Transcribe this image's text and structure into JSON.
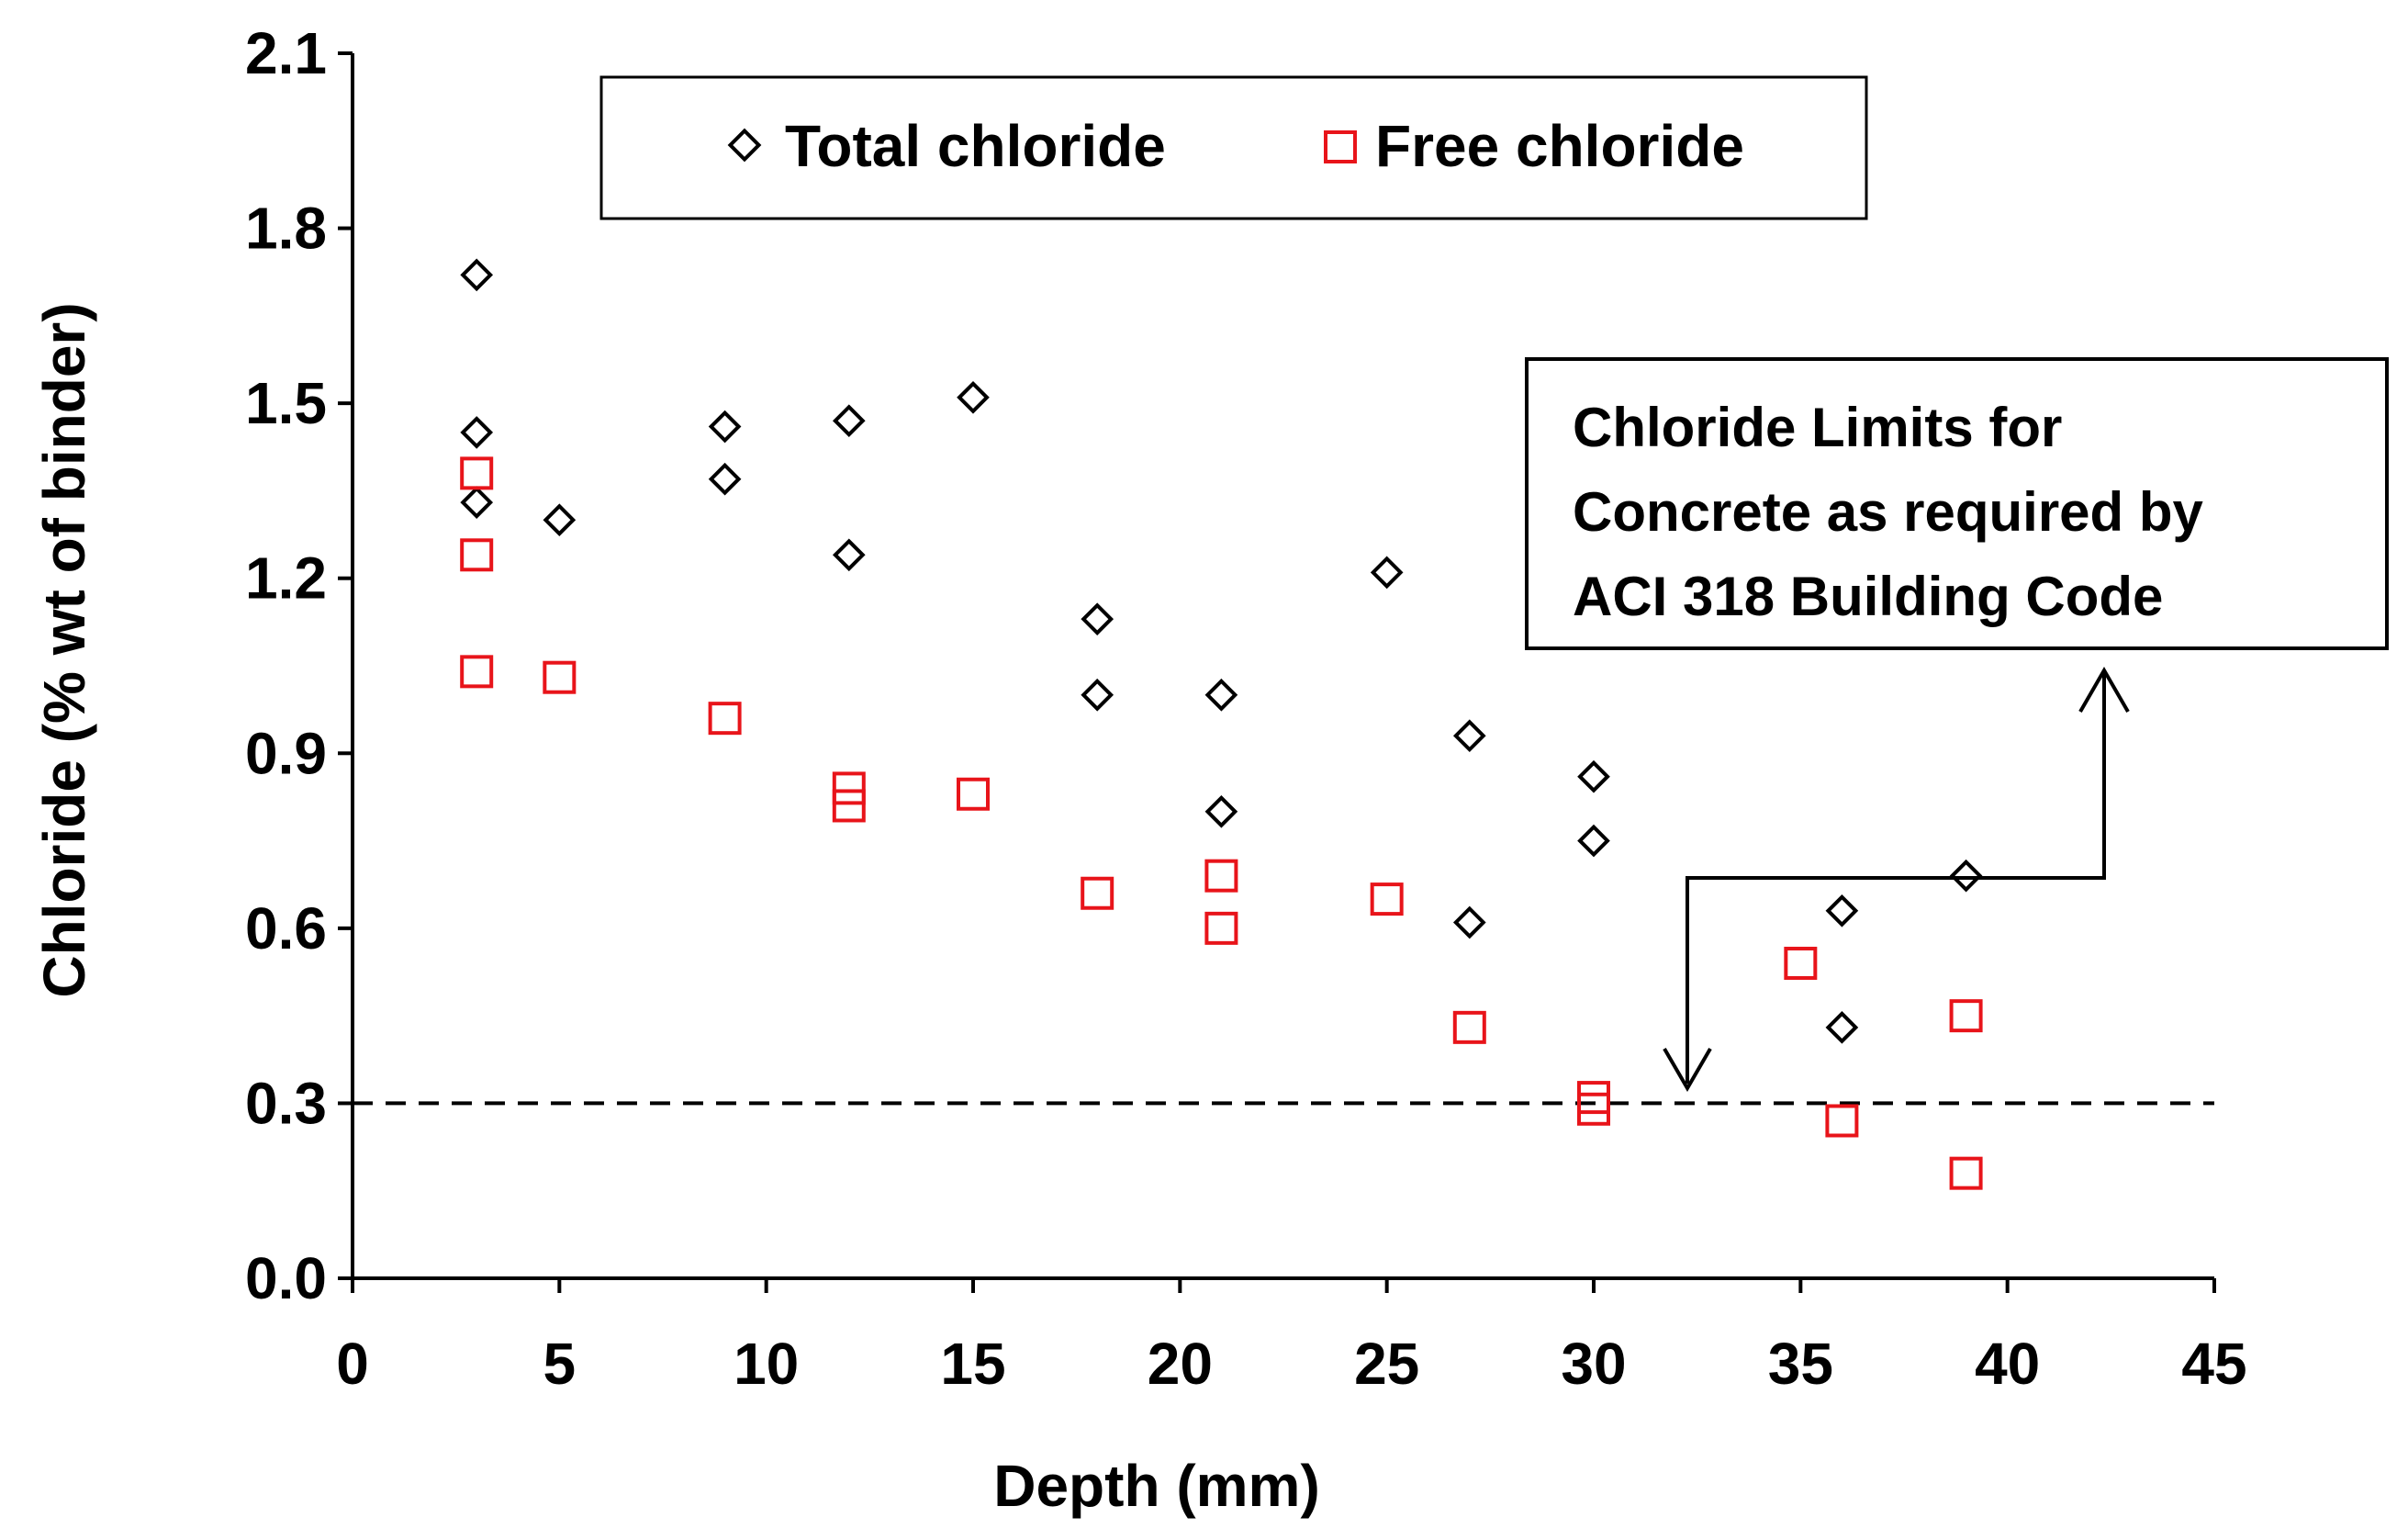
{
  "chart_data": {
    "type": "scatter",
    "title": "",
    "xlabel": "Depth (mm)",
    "ylabel": "Chloride (% wt of binder)",
    "xlim": [
      0,
      45
    ],
    "ylim": [
      0,
      2.1
    ],
    "x_ticks": [
      0,
      5,
      10,
      15,
      20,
      25,
      30,
      35,
      40,
      45
    ],
    "x_tick_labels": [
      "0",
      "5",
      "10",
      "15",
      "20",
      "25",
      "30",
      "35",
      "40",
      "45"
    ],
    "y_ticks": [
      0,
      0.3,
      0.6,
      0.9,
      1.2,
      1.5,
      1.8,
      2.1
    ],
    "y_tick_labels": [
      "0.0",
      "0.3",
      "0.6",
      "0.9",
      "1.2",
      "1.5",
      "1.8",
      "2.1"
    ],
    "grid": false,
    "legend_position": "top-center",
    "series": [
      {
        "name": "Total chloride",
        "marker": "diamond",
        "color": "#000000",
        "points": [
          {
            "x": 3,
            "y": 1.72
          },
          {
            "x": 3,
            "y": 1.45
          },
          {
            "x": 3,
            "y": 1.33
          },
          {
            "x": 5,
            "y": 1.3
          },
          {
            "x": 9,
            "y": 1.46
          },
          {
            "x": 9,
            "y": 1.37
          },
          {
            "x": 12,
            "y": 1.47
          },
          {
            "x": 12,
            "y": 1.24
          },
          {
            "x": 15,
            "y": 1.51
          },
          {
            "x": 18,
            "y": 1.13
          },
          {
            "x": 18,
            "y": 1.0
          },
          {
            "x": 21,
            "y": 1.0
          },
          {
            "x": 21,
            "y": 0.8
          },
          {
            "x": 25,
            "y": 1.21
          },
          {
            "x": 27,
            "y": 0.93
          },
          {
            "x": 27,
            "y": 0.61
          },
          {
            "x": 30,
            "y": 0.86
          },
          {
            "x": 30,
            "y": 0.75
          },
          {
            "x": 36,
            "y": 0.63
          },
          {
            "x": 36,
            "y": 0.43
          },
          {
            "x": 39,
            "y": 0.69
          }
        ]
      },
      {
        "name": "Free chloride",
        "marker": "square",
        "color": "#e8141a",
        "points": [
          {
            "x": 3,
            "y": 1.38
          },
          {
            "x": 3,
            "y": 1.24
          },
          {
            "x": 3,
            "y": 1.04
          },
          {
            "x": 5,
            "y": 1.03
          },
          {
            "x": 9,
            "y": 0.96
          },
          {
            "x": 12,
            "y": 0.84
          },
          {
            "x": 12,
            "y": 0.81
          },
          {
            "x": 15,
            "y": 0.83
          },
          {
            "x": 18,
            "y": 0.66
          },
          {
            "x": 21,
            "y": 0.69
          },
          {
            "x": 21,
            "y": 0.6
          },
          {
            "x": 25,
            "y": 0.65
          },
          {
            "x": 27,
            "y": 0.43
          },
          {
            "x": 30,
            "y": 0.31
          },
          {
            "x": 30,
            "y": 0.29
          },
          {
            "x": 35,
            "y": 0.54
          },
          {
            "x": 36,
            "y": 0.27
          },
          {
            "x": 39,
            "y": 0.45
          },
          {
            "x": 39,
            "y": 0.18
          }
        ]
      }
    ],
    "reference_line": {
      "y": 0.3,
      "style": "dashed",
      "color": "#000000"
    },
    "annotation": {
      "lines": [
        "Chloride Limits for",
        "Concrete as required by",
        "ACI 318 Building Code"
      ]
    }
  },
  "colors": {
    "total_marker": "#000000",
    "free_marker": "#e8141a",
    "axis": "#000000",
    "background": "#ffffff"
  }
}
